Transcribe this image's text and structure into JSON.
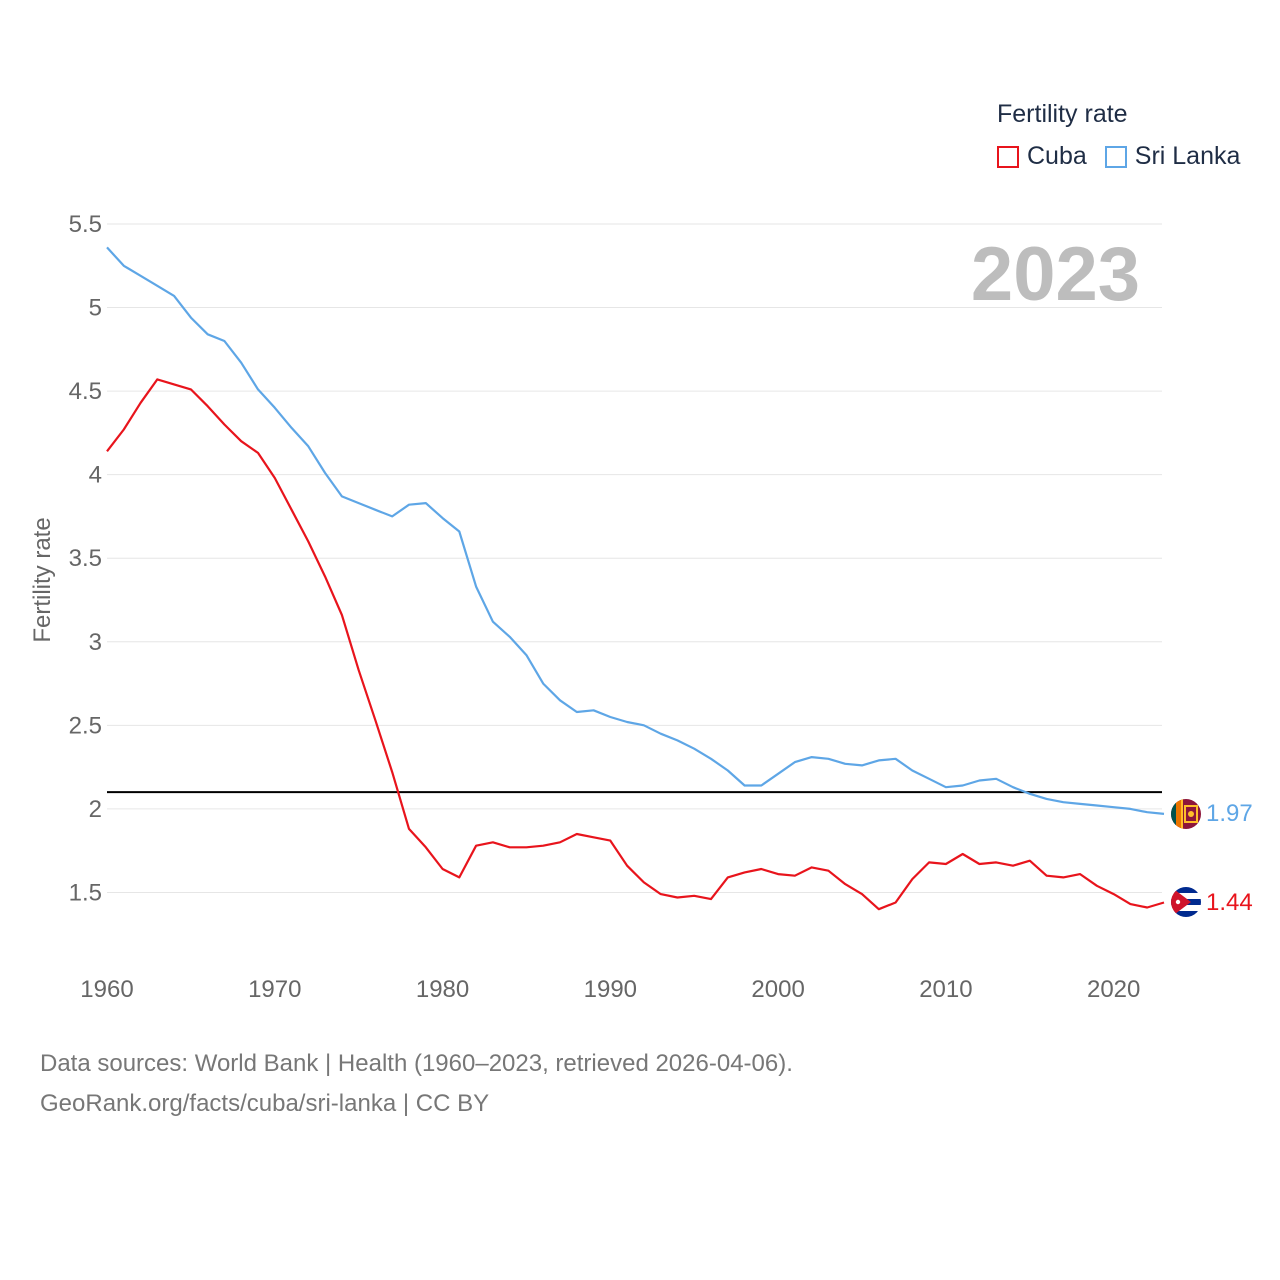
{
  "legend": {
    "title": "Fertility rate"
  },
  "footer": {
    "line1": "Data sources: World Bank | Health (1960–2023, retrieved 2026-04-06).",
    "line2": "GeoRank.org/facts/cuba/sri-lanka | CC BY"
  },
  "chart_data": {
    "type": "line",
    "title": "",
    "year_label": "2023",
    "ylabel": "Fertility rate",
    "xlabel": "",
    "xlim": [
      1960,
      2023
    ],
    "ylim": [
      1.0,
      5.5
    ],
    "yticks": [
      1.5,
      2,
      2.5,
      3,
      3.5,
      4,
      4.5,
      5,
      5.5
    ],
    "ytick_labels": [
      "1.5",
      "2",
      "2.5",
      "3",
      "3.5",
      "4",
      "4.5",
      "5",
      "5.5"
    ],
    "xticks": [
      1960,
      1970,
      1980,
      1990,
      2000,
      2010,
      2020
    ],
    "xtick_labels": [
      "1960",
      "1970",
      "1980",
      "1990",
      "2000",
      "2010",
      "2020"
    ],
    "reference_line": 2.1,
    "grid": true,
    "legend_position": "top-right",
    "x": [
      1960,
      1961,
      1962,
      1963,
      1964,
      1965,
      1966,
      1967,
      1968,
      1969,
      1970,
      1971,
      1972,
      1973,
      1974,
      1975,
      1976,
      1977,
      1978,
      1979,
      1980,
      1981,
      1982,
      1983,
      1984,
      1985,
      1986,
      1987,
      1988,
      1989,
      1990,
      1991,
      1992,
      1993,
      1994,
      1995,
      1996,
      1997,
      1998,
      1999,
      2000,
      2001,
      2002,
      2003,
      2004,
      2005,
      2006,
      2007,
      2008,
      2009,
      2010,
      2011,
      2012,
      2013,
      2014,
      2015,
      2016,
      2017,
      2018,
      2019,
      2020,
      2021,
      2022,
      2023
    ],
    "series": [
      {
        "name": "Cuba",
        "color": "#e8141c",
        "end_label": "1.44",
        "flag": "cuba-flag",
        "values": [
          4.14,
          4.27,
          4.43,
          4.57,
          4.54,
          4.51,
          4.41,
          4.3,
          4.2,
          4.13,
          3.98,
          3.79,
          3.6,
          3.39,
          3.16,
          2.83,
          2.53,
          2.22,
          1.88,
          1.77,
          1.64,
          1.59,
          1.78,
          1.8,
          1.77,
          1.77,
          1.78,
          1.8,
          1.85,
          1.83,
          1.81,
          1.66,
          1.56,
          1.49,
          1.47,
          1.48,
          1.46,
          1.59,
          1.62,
          1.64,
          1.61,
          1.6,
          1.65,
          1.63,
          1.55,
          1.49,
          1.4,
          1.44,
          1.58,
          1.68,
          1.67,
          1.73,
          1.67,
          1.68,
          1.66,
          1.69,
          1.6,
          1.59,
          1.61,
          1.54,
          1.49,
          1.43,
          1.41,
          1.44
        ]
      },
      {
        "name": "Sri Lanka",
        "color": "#5ea6e6",
        "end_label": "1.97",
        "flag": "sri-lanka-flag",
        "values": [
          5.36,
          5.25,
          5.19,
          5.13,
          5.07,
          4.94,
          4.84,
          4.8,
          4.67,
          4.51,
          4.4,
          4.28,
          4.17,
          4.01,
          3.87,
          3.83,
          3.79,
          3.75,
          3.82,
          3.83,
          3.74,
          3.66,
          3.33,
          3.12,
          3.03,
          2.92,
          2.75,
          2.65,
          2.58,
          2.59,
          2.55,
          2.52,
          2.5,
          2.45,
          2.41,
          2.36,
          2.3,
          2.23,
          2.14,
          2.14,
          2.21,
          2.28,
          2.31,
          2.3,
          2.27,
          2.26,
          2.29,
          2.3,
          2.23,
          2.18,
          2.13,
          2.14,
          2.17,
          2.18,
          2.13,
          2.09,
          2.06,
          2.04,
          2.03,
          2.02,
          2.01,
          2.0,
          1.98,
          1.97
        ]
      }
    ]
  }
}
